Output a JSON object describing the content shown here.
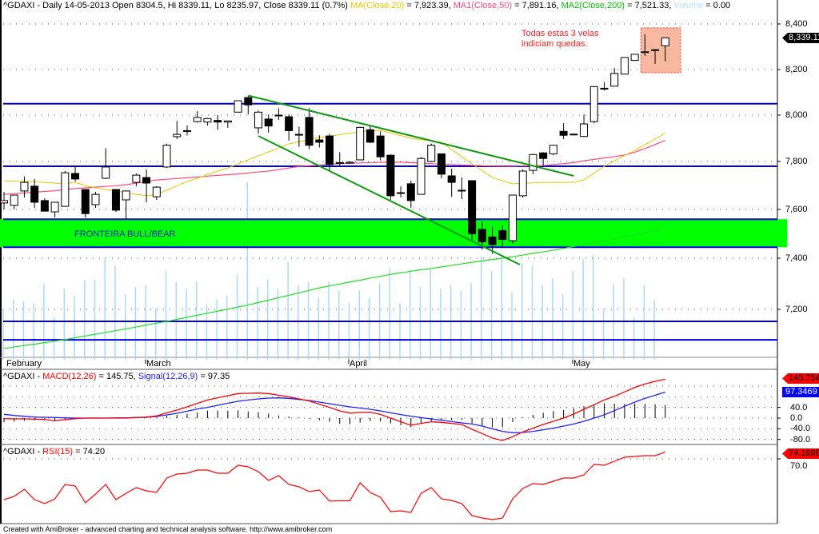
{
  "header": {
    "main": "^GDAXI - Daily 14-05-2013 Open 8304.5, Hi 8339.11, Lo 8235.97, Close 8339.11 (0.7%)",
    "ma20_label": "MA(Close,20)",
    "ma20_value": " = 7,923.39, ",
    "ma50_label": "MA1(Close,50)",
    "ma50_value": " = 7,891.16, ",
    "ma200_label": "MA2(Close,200)",
    "ma200_value": " = 7,521.33, ",
    "volume_label": "Volume",
    "volume_value": " = 0.00"
  },
  "macd_header": {
    "prefix": "^GDAXI - ",
    "macd_label": "MACD(12,26)",
    "macd_value": " = 145.75, ",
    "signal_label": "Signal(12,26,9)",
    "signal_value": " = 97.35"
  },
  "rsi_header": {
    "prefix": "^GDAXI - ",
    "rsi_label": "RSI(15)",
    "rsi_value": " = 74.20"
  },
  "tags": {
    "price": "8,339.11",
    "macd": "145.754",
    "signal": "97.3469",
    "rsi": "74.1996"
  },
  "annotations": {
    "note": "Todas estas 3 velas indiciam quedas.",
    "band_label": "FRONTEIRA BULL/BEAR"
  },
  "footer": "Created with AmiBroker - advanced charting and technical analysis software. http://www.amibroker.com",
  "colors": {
    "ma20": "#e6c800",
    "ma50": "#ff4a78",
    "ma200": "#22dd22",
    "volume": "#a8d8ff",
    "macd": "#ff0000",
    "signal": "#2020ff",
    "rsi": "#ff0000",
    "band": "#00ff00",
    "levels": "#0000dd",
    "trend": "#119911",
    "highlight": "#f8b8a0"
  },
  "chart_data": [
    {
      "type": "candlestick",
      "title": "^GDAXI - Daily",
      "x_ticks": [
        {
          "label": "February",
          "bar": 0
        },
        {
          "label": "March",
          "bar": 14
        },
        {
          "label": "April",
          "bar": 34
        },
        {
          "label": "May",
          "bar": 56
        }
      ],
      "y_ticks": [
        {
          "value": 8400,
          "label": "8,400"
        },
        {
          "value": 8200,
          "label": "8,200"
        },
        {
          "value": 8000,
          "label": "8,000"
        },
        {
          "value": 7800,
          "label": "7,800"
        },
        {
          "value": 7600,
          "label": "7,600"
        },
        {
          "value": 7400,
          "label": "7,400"
        },
        {
          "value": 7200,
          "label": "7,200"
        }
      ],
      "grid": true,
      "ohlc": [
        [
          7627,
          7673,
          7600,
          7637
        ],
        [
          7617,
          7660,
          7600,
          7660
        ],
        [
          7677,
          7737,
          7650,
          7713
        ],
        [
          7697,
          7727,
          7607,
          7630
        ],
        [
          7637,
          7647,
          7593,
          7593
        ],
        [
          7590,
          7630,
          7567,
          7630
        ],
        [
          7613,
          7760,
          7613,
          7753
        ],
        [
          7750,
          7783,
          7717,
          7727
        ],
        [
          7683,
          7683,
          7567,
          7583
        ],
        [
          7620,
          7673,
          7607,
          7663
        ],
        [
          7730,
          7857,
          7727,
          7777
        ],
        [
          7683,
          7683,
          7590,
          7597
        ],
        [
          7640,
          7677,
          7563,
          7677
        ],
        [
          7713,
          7750,
          7697,
          7743
        ],
        [
          7733,
          7767,
          7630,
          7710
        ],
        [
          7653,
          7697,
          7640,
          7693
        ],
        [
          7777,
          7877,
          7773,
          7870
        ],
        [
          7907,
          7975,
          7897,
          7917
        ],
        [
          7930,
          7955,
          7912,
          7933
        ],
        [
          7972,
          8017,
          7968,
          7990
        ],
        [
          7970,
          7988,
          7955,
          7985
        ],
        [
          7977,
          8000,
          7937,
          7970
        ],
        [
          7970,
          7975,
          7945,
          7975
        ],
        [
          8013,
          8063,
          8013,
          8063
        ],
        [
          8077,
          8083,
          8003,
          8045
        ],
        [
          7945,
          8020,
          7920,
          8013
        ],
        [
          7983,
          8003,
          7925,
          7953
        ],
        [
          7997,
          8030,
          7980,
          8000
        ],
        [
          7993,
          8003,
          7890,
          7933
        ],
        [
          7917,
          7950,
          7863,
          7915
        ],
        [
          7990,
          8030,
          7853,
          7870
        ],
        [
          7893,
          7913,
          7860,
          7883
        ],
        [
          7910,
          7920,
          7763,
          7787
        ],
        [
          7793,
          7840,
          7780,
          7795
        ],
        [
          7793,
          7800,
          7790,
          7797
        ],
        [
          7807,
          7950,
          7807,
          7947
        ],
        [
          7937,
          7957,
          7880,
          7883
        ],
        [
          7910,
          7930,
          7805,
          7820
        ],
        [
          7827,
          7830,
          7640,
          7657
        ],
        [
          7670,
          7697,
          7650,
          7667
        ],
        [
          7707,
          7720,
          7607,
          7637
        ],
        [
          7663,
          7820,
          7663,
          7813
        ],
        [
          7800,
          7877,
          7797,
          7870
        ],
        [
          7833,
          7833,
          7730,
          7747
        ],
        [
          7740,
          7770,
          7653,
          7713
        ],
        [
          7680,
          7733,
          7643,
          7680
        ],
        [
          7720,
          7720,
          7475,
          7500
        ],
        [
          7518,
          7550,
          7435,
          7467
        ],
        [
          7487,
          7530,
          7418,
          7455
        ],
        [
          7513,
          7533,
          7443,
          7477
        ],
        [
          7472,
          7660,
          7460,
          7660
        ],
        [
          7657,
          7767,
          7650,
          7760
        ],
        [
          7763,
          7833,
          7747,
          7830
        ],
        [
          7837,
          7840,
          7783,
          7813
        ],
        [
          7833,
          7870,
          7827,
          7870
        ],
        [
          7930,
          7965,
          7897,
          7913
        ],
        [
          7918,
          7920,
          7916,
          7918
        ],
        [
          7908,
          8003,
          7905,
          7962
        ],
        [
          7972,
          8127,
          7965,
          8125
        ],
        [
          8118,
          8145,
          8108,
          8114
        ],
        [
          8127,
          8207,
          8127,
          8183
        ],
        [
          8180,
          8253,
          8180,
          8253
        ],
        [
          8240,
          8267,
          8240,
          8267
        ],
        [
          8277,
          8355,
          8260,
          8278
        ],
        [
          8285,
          8290,
          8225,
          8287
        ],
        [
          8304.5,
          8339.11,
          8235.97,
          8339.11
        ]
      ],
      "ma20": [
        7720,
        7718,
        7717,
        7715,
        7713,
        7710,
        7707,
        7713,
        7700,
        7690,
        7683,
        7677,
        7670,
        7663,
        7657,
        7663,
        7680,
        7698,
        7717,
        7730,
        7745,
        7760,
        7773,
        7790,
        7807,
        7824,
        7841,
        7858,
        7876,
        7885,
        7894,
        7903,
        7909,
        7916,
        7922,
        7928,
        7931,
        7934,
        7923,
        7912,
        7900,
        7894,
        7889,
        7883,
        7852,
        7821,
        7790,
        7762,
        7733,
        7720,
        7707,
        7709,
        7711,
        7713,
        7713,
        7713,
        7713,
        7723,
        7752,
        7780,
        7803,
        7826,
        7848,
        7872,
        7897,
        7923.39
      ],
      "ma50": [
        7663,
        7666,
        7669,
        7672,
        7675,
        7678,
        7683,
        7687,
        7690,
        7693,
        7696,
        7699,
        7703,
        7710,
        7716,
        7723,
        7726,
        7729,
        7732,
        7735,
        7739,
        7742,
        7745,
        7748,
        7752,
        7756,
        7760,
        7766,
        7773,
        7779,
        7782,
        7785,
        7788,
        7791,
        7793,
        7794,
        7795,
        7796,
        7797,
        7797,
        7795,
        7793,
        7791,
        7789,
        7787,
        7785,
        7784,
        7782,
        7781,
        7780,
        7780,
        7781,
        7782,
        7783,
        7787,
        7791,
        7795,
        7803,
        7809,
        7815,
        7821,
        7828,
        7840,
        7856,
        7873,
        7891.16
      ],
      "ma200": [
        7047,
        7053,
        7059,
        7064,
        7070,
        7076,
        7082,
        7089,
        7096,
        7103,
        7110,
        7117,
        7124,
        7131,
        7139,
        7146,
        7153,
        7161,
        7169,
        7177,
        7185,
        7193,
        7201,
        7209,
        7217,
        7227,
        7236,
        7246,
        7255,
        7265,
        7274,
        7284,
        7292,
        7299,
        7307,
        7314,
        7322,
        7329,
        7337,
        7343,
        7349,
        7355,
        7360,
        7366,
        7372,
        7378,
        7384,
        7389,
        7395,
        7400,
        7406,
        7413,
        7420,
        7426,
        7433,
        7440,
        7448,
        7456,
        7464,
        7472,
        7480,
        7488,
        7497,
        7505,
        7513,
        7521.33
      ],
      "volume_relative_pct": [
        29,
        34,
        33,
        32,
        43,
        24,
        40,
        36,
        45,
        45,
        57,
        53,
        37,
        41,
        42,
        29,
        50,
        44,
        40,
        44,
        31,
        34,
        36,
        48,
        100,
        41,
        45,
        40,
        55,
        42,
        44,
        35,
        44,
        39,
        32,
        39,
        35,
        43,
        52,
        32,
        51,
        41,
        51,
        40,
        42,
        39,
        43,
        58,
        50,
        57,
        38,
        54,
        53,
        42,
        46,
        37,
        50,
        57,
        59,
        29,
        43,
        46,
        24,
        42,
        34,
        0
      ],
      "horizontal_levels": [
        8050,
        7780,
        7153,
        7081
      ],
      "band": [
        7445,
        7560
      ],
      "trendlines": [
        {
          "from": [
            24,
            8086
          ],
          "to": [
            56,
            7740
          ]
        },
        {
          "from": [
            25,
            7910
          ],
          "to": [
            50.7,
            7375
          ]
        }
      ],
      "highlight_box": {
        "bars": [
          62.6,
          66.5
        ],
        "prices": [
          8186,
          8383
        ]
      }
    },
    {
      "type": "line",
      "title": "MACD",
      "y_ticks": [
        {
          "value": 40,
          "label": "40.0"
        },
        {
          "value": 0,
          "label": "0.0"
        },
        {
          "value": -40,
          "label": "-40.0"
        },
        {
          "value": -80,
          "label": "-80.0"
        }
      ],
      "grid_values": [
        120,
        80,
        40,
        0,
        -40,
        -80
      ],
      "series": [
        {
          "name": "MACD(12,26)",
          "values": [
            -2,
            -3,
            -3,
            -4,
            -5,
            -10,
            -6,
            -2,
            0,
            0,
            0,
            0,
            0,
            2,
            4,
            8,
            20,
            30,
            42,
            55,
            68,
            76,
            84,
            92,
            93,
            94,
            92,
            86,
            80,
            72,
            64,
            52,
            40,
            27,
            19,
            21,
            22,
            14,
            0,
            -14,
            -27,
            -20,
            -14,
            -16,
            -20,
            -24,
            -42,
            -58,
            -75,
            -84,
            -70,
            -52,
            -38,
            -24,
            -12,
            0,
            15,
            33,
            50,
            68,
            82,
            98,
            115,
            128,
            138,
            145.75
          ]
        },
        {
          "name": "Signal(12,26,9)",
          "values": [
            14,
            10,
            7,
            4,
            3,
            2,
            1,
            0,
            0,
            0,
            0,
            1,
            1,
            2,
            3,
            6,
            12,
            18,
            26,
            34,
            40,
            48,
            56,
            63,
            68,
            72,
            75,
            76,
            74,
            70,
            66,
            60,
            54,
            48,
            42,
            38,
            33,
            27,
            20,
            13,
            7,
            2,
            -3,
            -8,
            -13,
            -18,
            -22,
            -30,
            -40,
            -50,
            -55,
            -54,
            -50,
            -44,
            -38,
            -30,
            -22,
            -12,
            0,
            12,
            28,
            44,
            60,
            74,
            86,
            97.35
          ]
        }
      ],
      "histogram": "MACD - Signal"
    },
    {
      "type": "line",
      "title": "RSI(15)",
      "y_ticks": [
        {
          "value": 70,
          "label": "70.0"
        }
      ],
      "series": [
        {
          "name": "RSI(15)",
          "values": [
            44.5,
            46.5,
            51,
            44.5,
            42,
            45,
            54,
            53,
            42.5,
            48,
            54,
            44.5,
            48.5,
            52,
            50,
            49,
            58,
            60.5,
            61,
            63,
            63,
            61,
            61,
            66,
            65,
            62,
            56.5,
            59.5,
            54,
            52.5,
            49.5,
            50.5,
            43.6,
            43.8,
            43.8,
            55,
            49,
            46,
            37,
            37.5,
            36.5,
            48.5,
            52,
            45,
            44,
            42,
            34.5,
            33,
            32,
            33,
            45,
            51.5,
            54.5,
            54,
            56,
            58,
            58,
            60,
            66.5,
            66,
            68.5,
            71,
            71.5,
            72,
            72,
            74.2
          ]
        }
      ]
    }
  ]
}
